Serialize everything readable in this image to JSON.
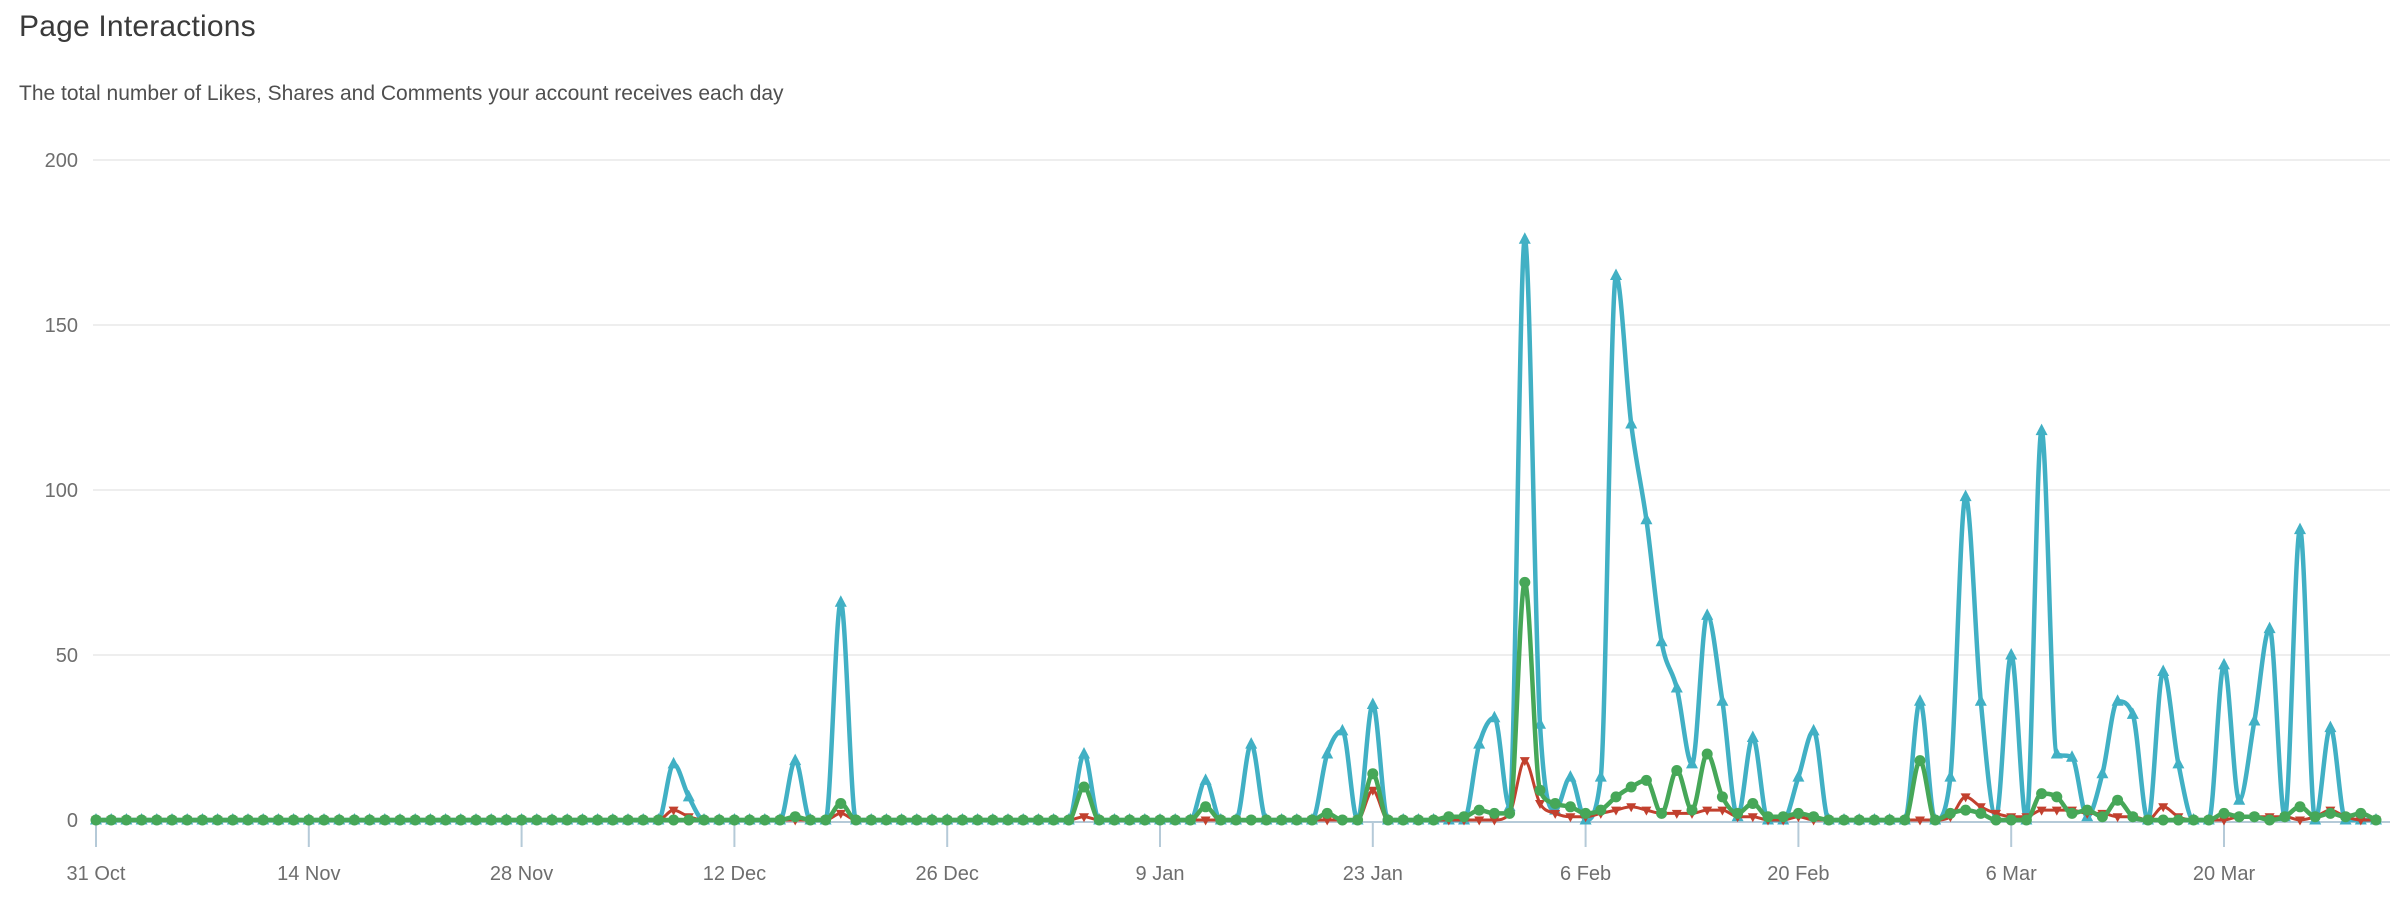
{
  "header": {
    "title": "Page Interactions",
    "subtitle": "The total number of Likes, Shares and Comments your account receives each day"
  },
  "style": {
    "grid_color": "#e8e8e8",
    "axis_color": "#b5cad8",
    "tick_label_color": "#6e6e6e",
    "title_color": "#3a3a3a",
    "subtitle_color": "#4f4f4f",
    "background": "#ffffff"
  },
  "chart_data": {
    "type": "line",
    "title": "Page Interactions",
    "subtitle": "The total number of Likes, Shares and Comments your account receives each day",
    "xlabel": "",
    "ylabel": "",
    "ylim": [
      0,
      200
    ],
    "y_ticks": [
      0,
      50,
      100,
      150,
      200
    ],
    "grid": "horizontal-only",
    "legend": "none",
    "x_unit": "day",
    "x_total_days": 151,
    "x_tick_labels": [
      "31 Oct",
      "14 Nov",
      "28 Nov",
      "12 Dec",
      "26 Dec",
      "9 Jan",
      "23 Jan",
      "6 Feb",
      "20 Feb",
      "6 Mar",
      "20 Mar"
    ],
    "x_tick_day_offsets": [
      0,
      14,
      28,
      42,
      56,
      70,
      84,
      98,
      112,
      126,
      140
    ],
    "series": [
      {
        "name": "Likes",
        "color": "#41b0c4",
        "marker": "triangle-up",
        "values": [
          0,
          0,
          0,
          0,
          0,
          0,
          0,
          0,
          0,
          0,
          0,
          0,
          0,
          0,
          0,
          0,
          0,
          0,
          0,
          0,
          0,
          0,
          0,
          0,
          0,
          0,
          0,
          0,
          0,
          0,
          0,
          0,
          0,
          0,
          0,
          0,
          0,
          0,
          17,
          7,
          0,
          0,
          0,
          0,
          0,
          0,
          18,
          0,
          0,
          66,
          0,
          0,
          0,
          0,
          0,
          0,
          0,
          0,
          0,
          0,
          0,
          0,
          0,
          0,
          0,
          20,
          0,
          0,
          0,
          0,
          0,
          0,
          0,
          12,
          0,
          0,
          23,
          0,
          0,
          0,
          0,
          20,
          27,
          0,
          35,
          0,
          0,
          0,
          0,
          0,
          0,
          23,
          31,
          4,
          176,
          29,
          3,
          13,
          0,
          13,
          165,
          120,
          91,
          54,
          40,
          17,
          62,
          36,
          1,
          25,
          0,
          0,
          13,
          27,
          0,
          0,
          0,
          0,
          0,
          0,
          36,
          0,
          13,
          98,
          36,
          1,
          50,
          0,
          118,
          20,
          19,
          1,
          14,
          36,
          32,
          0,
          45,
          17,
          0,
          0,
          47,
          6,
          30,
          58,
          1,
          88,
          0,
          28,
          0,
          0,
          0
        ]
      },
      {
        "name": "Shares",
        "color": "#46a758",
        "marker": "circle",
        "values": [
          0,
          0,
          0,
          0,
          0,
          0,
          0,
          0,
          0,
          0,
          0,
          0,
          0,
          0,
          0,
          0,
          0,
          0,
          0,
          0,
          0,
          0,
          0,
          0,
          0,
          0,
          0,
          0,
          0,
          0,
          0,
          0,
          0,
          0,
          0,
          0,
          0,
          0,
          0,
          0,
          0,
          0,
          0,
          0,
          0,
          0,
          1,
          0,
          0,
          5,
          0,
          0,
          0,
          0,
          0,
          0,
          0,
          0,
          0,
          0,
          0,
          0,
          0,
          0,
          0,
          10,
          0,
          0,
          0,
          0,
          0,
          0,
          0,
          4,
          0,
          0,
          0,
          0,
          0,
          0,
          0,
          2,
          0,
          0,
          14,
          0,
          0,
          0,
          0,
          1,
          1,
          3,
          2,
          2,
          72,
          9,
          5,
          4,
          2,
          3,
          7,
          10,
          12,
          2,
          15,
          3,
          20,
          7,
          2,
          5,
          1,
          1,
          2,
          1,
          0,
          0,
          0,
          0,
          0,
          0,
          18,
          0,
          2,
          3,
          2,
          0,
          0,
          0,
          8,
          7,
          2,
          3,
          1,
          6,
          1,
          0,
          0,
          0,
          0,
          0,
          2,
          1,
          1,
          0,
          1,
          4,
          1,
          2,
          1,
          2,
          0
        ]
      },
      {
        "name": "Comments",
        "color": "#c2402e",
        "marker": "triangle-down",
        "values": [
          0,
          0,
          0,
          0,
          0,
          0,
          0,
          0,
          0,
          0,
          0,
          0,
          0,
          0,
          0,
          0,
          0,
          0,
          0,
          0,
          0,
          0,
          0,
          0,
          0,
          0,
          0,
          0,
          0,
          0,
          0,
          0,
          0,
          0,
          0,
          0,
          0,
          0,
          3,
          1,
          0,
          0,
          0,
          0,
          0,
          0,
          0,
          0,
          0,
          2,
          0,
          0,
          0,
          0,
          0,
          0,
          0,
          0,
          0,
          0,
          0,
          0,
          0,
          0,
          0,
          1,
          0,
          0,
          0,
          0,
          0,
          0,
          0,
          0,
          0,
          0,
          0,
          0,
          0,
          0,
          0,
          0,
          0,
          0,
          9,
          0,
          0,
          0,
          0,
          0,
          0,
          0,
          0,
          2,
          18,
          5,
          2,
          1,
          1,
          2,
          3,
          4,
          3,
          2,
          2,
          2,
          3,
          3,
          1,
          1,
          0,
          0,
          1,
          0,
          0,
          0,
          0,
          0,
          0,
          0,
          0,
          0,
          1,
          7,
          4,
          2,
          1,
          1,
          3,
          3,
          3,
          2,
          2,
          1,
          1,
          0,
          4,
          1,
          0,
          0,
          0,
          1,
          1,
          1,
          1,
          0,
          1,
          3,
          1,
          0,
          0
        ]
      }
    ]
  }
}
